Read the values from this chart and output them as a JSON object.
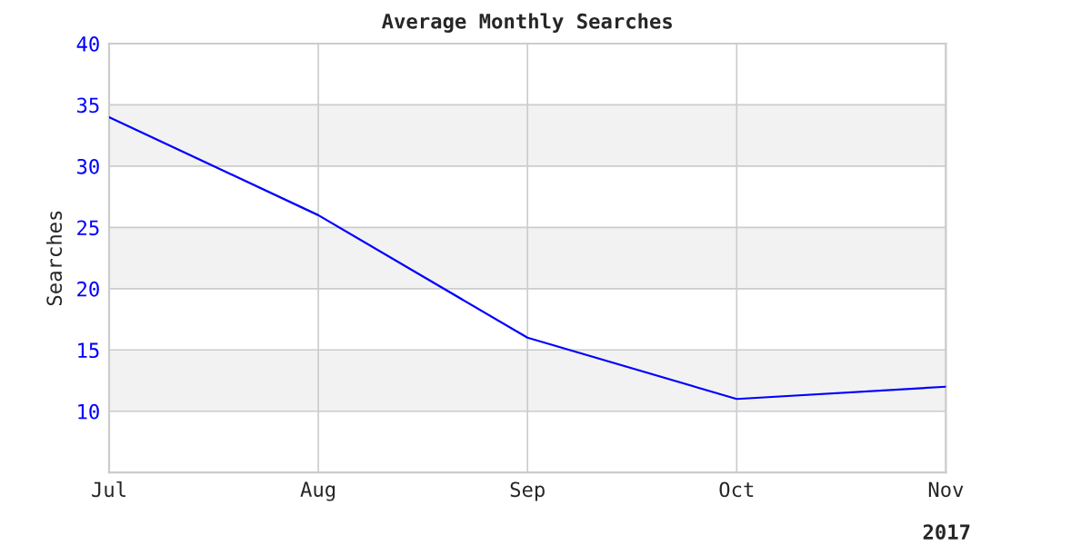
{
  "chart_data": {
    "type": "line",
    "title": "Average Monthly Searches",
    "ylabel": "Searches",
    "xlabel": "2017",
    "categories": [
      "Jul",
      "Aug",
      "Sep",
      "Oct",
      "Nov"
    ],
    "series": [
      {
        "color": "#0000ff",
        "values": [
          34,
          26,
          16,
          11,
          12
        ]
      }
    ],
    "ylim": [
      5,
      40
    ],
    "yticks": [
      10,
      15,
      20,
      25,
      30,
      35,
      40
    ],
    "grid": true,
    "legend": false,
    "marker": "none",
    "line_style": "solid",
    "bands": [
      {
        "axis": "y",
        "from": 10,
        "to": 15,
        "color": "#f2f2f2"
      },
      {
        "axis": "y",
        "from": 20,
        "to": 25,
        "color": "#f2f2f2"
      },
      {
        "axis": "y",
        "from": 30,
        "to": 35,
        "color": "#f2f2f2"
      }
    ]
  }
}
